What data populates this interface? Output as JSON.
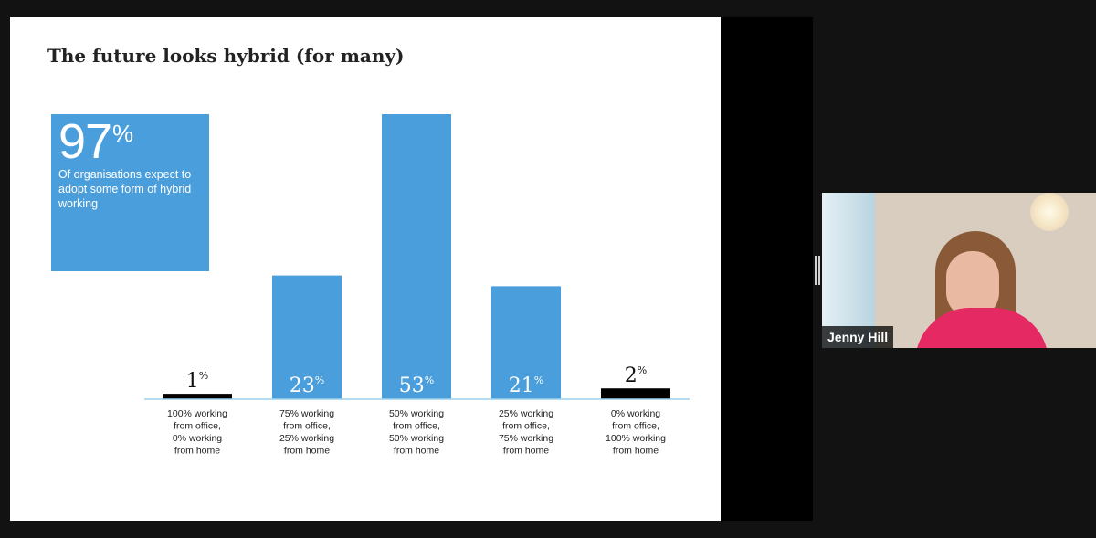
{
  "slide": {
    "title": "The future looks hybrid (for many)",
    "stat": {
      "value": "97",
      "symbol": "%",
      "description": "Of organisations expect to adopt some form of hybrid working"
    }
  },
  "chart_data": {
    "type": "bar",
    "categories": [
      "100% working from office, 0% working from home",
      "75% working from office, 25% working from home",
      "50% working from office, 50% working from home",
      "25% working from office, 75% working from home",
      "0% working from office, 100% working from home"
    ],
    "category_lines": [
      [
        "100% working",
        "from office,",
        "0% working",
        "from home"
      ],
      [
        "75% working",
        "from office,",
        "25% working",
        "from home"
      ],
      [
        "50% working",
        "from office,",
        "50% working",
        "from home"
      ],
      [
        "25% working",
        "from office,",
        "75% working",
        "from home"
      ],
      [
        "0% working",
        "from office,",
        "100% working",
        "from home"
      ]
    ],
    "values": [
      1,
      23,
      53,
      21,
      2
    ],
    "value_labels": [
      "1",
      "23",
      "53",
      "21",
      "2"
    ],
    "unit": "%",
    "bar_colors": [
      "#000000",
      "#4a9edb",
      "#4a9edb",
      "#4a9edb",
      "#000000"
    ],
    "baseline_color": "#9ed0ea",
    "ylim": [
      0,
      53
    ],
    "grid": false,
    "title": "",
    "xlabel": "",
    "ylabel": ""
  },
  "participant": {
    "name": "Jenny Hill"
  },
  "colors": {
    "accent": "#4a9edb",
    "background": "#121212"
  }
}
